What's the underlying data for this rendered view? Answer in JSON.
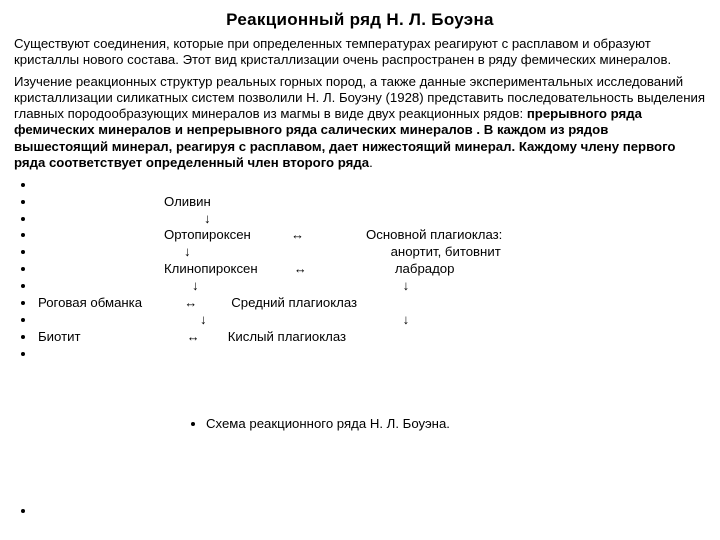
{
  "title": "Реакционный  ряд  Н. Л.  Боуэна",
  "para1": "Существуют соединения, которые при определенных температурах реагируют с расплавом и образуют кристаллы нового состава. Этот вид кристаллизации очень распространен в ряду фемических минералов.",
  "para2_plain": "Изучение реакционных структур реальных горных пород, а также данные экспериментальных исследований кристаллизации силикатных систем позволили Н. Л. Боуэну (1928) представить последовательность выделения главных породообразующих минералов из магмы в виде двух реакционных рядов: ",
  "para2_bold": "прерывного ряда фемических минералов и непрерывного ряда салических минералов . В каждом из рядов вышестоящий минерал, реагируя с расплавом, дает нижестоящий минерал. Каждому члену первого ряда соответствует определенный член второго ряда",
  "list": {
    "blank": " ",
    "r1": "Оливин",
    "r2": "↓",
    "r3_a": "Ортопироксен",
    "r3_ar": "↔",
    "r3_b": "Основной плагиоклаз:",
    "r4_a": "↓",
    "r4_b": "анортит, битовнит",
    "r5_a": "Клинопироксен",
    "r5_ar": "↔",
    "r5_b": "лабрадор",
    "r6_a": "↓",
    "r6_b": "↓",
    "r7_a": "Роговая обманка",
    "r7_ar": "↔",
    "r7_b": "Средний плагиоклаз",
    "r8_a": "↓",
    "r8_b": "↓",
    "r9_a": "Биотит",
    "r9_ar": "↔",
    "r9_b": "Кислый плагиоклаз",
    "caption": "Схема реакционного ряда Н. Л. Боуэна."
  }
}
